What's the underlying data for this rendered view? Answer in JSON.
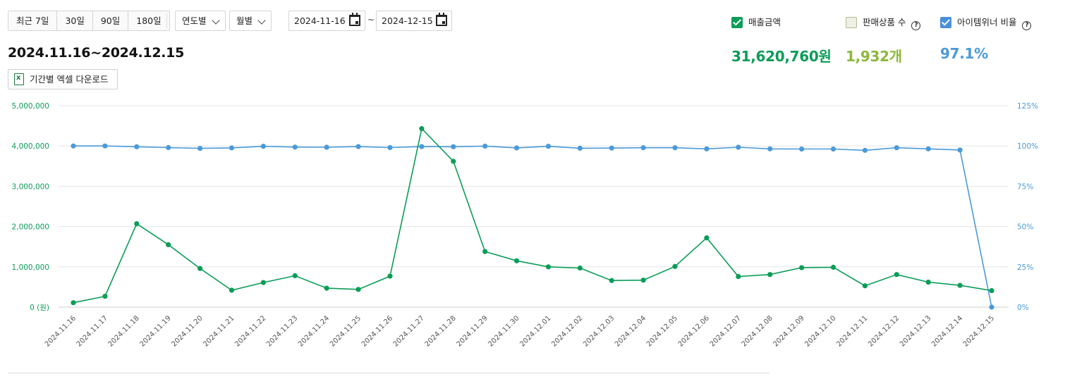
{
  "toolbar": {
    "periods": [
      "최근 7일",
      "30일",
      "90일",
      "180일"
    ],
    "year_select": "연도별",
    "month_select": "월별",
    "date_start": "2024-11-16",
    "date_separator": "~",
    "date_end": "2024-12-15"
  },
  "header": {
    "range_title": "2024.11.16~2024.12.15",
    "excel_download": "기간별 엑셀 다운로드"
  },
  "legend": {
    "sales": {
      "label": "매출금액",
      "checked": true,
      "color": "#0a9d57",
      "value": "31,620,760원"
    },
    "qty": {
      "label": "판매상품 수",
      "checked": false,
      "color": "#8cb83a",
      "value": "1,932개"
    },
    "ratio": {
      "label": "아이템위너 비율",
      "checked": true,
      "color": "#4a9ad9",
      "value": "97.1%"
    }
  },
  "chart_data": {
    "type": "line",
    "x": [
      "2024.11.16",
      "2024.11.17",
      "2024.11.18",
      "2024.11.19",
      "2024.11.20",
      "2024.11.21",
      "2024.11.22",
      "2024.11.23",
      "2024.11.24",
      "2024.11.25",
      "2024.11.26",
      "2024.11.27",
      "2024.11.28",
      "2024.11.29",
      "2024.11.30",
      "2024.12.01",
      "2024.12.02",
      "2024.12.03",
      "2024.12.04",
      "2024.12.05",
      "2024.12.06",
      "2024.12.07",
      "2024.12.08",
      "2024.12.09",
      "2024.12.10",
      "2024.12.11",
      "2024.12.12",
      "2024.12.13",
      "2024.12.14",
      "2024.12.15"
    ],
    "series": [
      {
        "name": "매출금액",
        "axis": "left",
        "color": "#0a9d57",
        "values": [
          110000,
          270000,
          2070000,
          1550000,
          960000,
          420000,
          610000,
          780000,
          470000,
          440000,
          770000,
          4430000,
          3620000,
          1380000,
          1150000,
          1000000,
          970000,
          660000,
          670000,
          1010000,
          1720000,
          760000,
          810000,
          980000,
          990000,
          530000,
          810000,
          620000,
          540000,
          410000
        ]
      },
      {
        "name": "아이템위너 비율",
        "axis": "right",
        "color": "#4a9ad9",
        "values": [
          100,
          100,
          99.5,
          99,
          98.5,
          98.8,
          99.8,
          99.3,
          99.2,
          99.6,
          99,
          99.6,
          99.5,
          99.9,
          98.8,
          99.8,
          98.6,
          98.7,
          98.9,
          98.9,
          98.2,
          99.2,
          98.2,
          98.1,
          98.1,
          97.3,
          98.9,
          98.2,
          97.5,
          0
        ]
      }
    ],
    "y_left": {
      "ticks": [
        "0 (원)",
        "1,000,000",
        "2,000,000",
        "3,000,000",
        "4,000,000",
        "5,000,000"
      ],
      "ylim": [
        0,
        5000000
      ]
    },
    "y_right": {
      "ticks": [
        "0%",
        "25%",
        "50%",
        "75%",
        "100%",
        "125%"
      ],
      "ylim": [
        0,
        125
      ]
    },
    "grid": true
  }
}
